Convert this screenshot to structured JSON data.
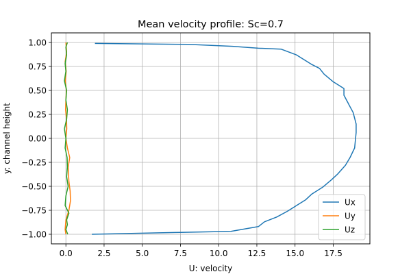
{
  "chart_data": {
    "type": "line",
    "title": "Mean velocity profile: Sc=0.7",
    "xlabel": "U: velocity",
    "ylabel": "y: channel height",
    "xlim": [
      -0.95,
      19.9
    ],
    "ylim": [
      -1.1,
      1.1
    ],
    "x_ticks": [
      "0.0",
      "2.5",
      "5.0",
      "7.5",
      "10.0",
      "12.5",
      "15.0",
      "17.5"
    ],
    "y_ticks": [
      "1.00",
      "0.75",
      "0.50",
      "0.25",
      "0.00",
      "−0.25",
      "−0.50",
      "−0.75",
      "−1.00"
    ],
    "grid": true,
    "legend_position": "lower-right",
    "series": [
      {
        "name": "Ux",
        "color": "#1f77b4",
        "x": [
          1.9,
          8.0,
          10.9,
          12.6,
          14.1,
          15.1,
          15.6,
          16.1,
          16.6,
          16.9,
          17.5,
          18.2,
          18.2,
          18.6,
          18.8,
          18.9,
          19.0,
          19.0,
          18.95,
          18.9,
          18.6,
          18.3,
          17.8,
          17.4,
          16.8,
          16.1,
          15.7,
          15.1,
          14.5,
          13.8,
          13.0,
          12.6,
          10.8,
          7.5,
          1.7
        ],
        "y": [
          0.99,
          0.98,
          0.96,
          0.94,
          0.93,
          0.87,
          0.82,
          0.77,
          0.73,
          0.67,
          0.59,
          0.52,
          0.45,
          0.33,
          0.27,
          0.21,
          0.15,
          0.06,
          -0.02,
          -0.1,
          -0.2,
          -0.28,
          -0.37,
          -0.43,
          -0.51,
          -0.58,
          -0.64,
          -0.7,
          -0.76,
          -0.82,
          -0.87,
          -0.92,
          -0.97,
          -0.98,
          -1.0
        ]
      },
      {
        "name": "Uy",
        "color": "#ff7f0e",
        "x": [
          0.0,
          0.05,
          -0.05,
          0.02,
          -0.04,
          0.03,
          0.0,
          -0.02,
          0.04,
          0.06,
          0.0,
          0.1,
          0.25,
          0.15,
          0.2,
          0.28,
          0.3,
          0.2,
          0.0,
          -0.05,
          0.0
        ],
        "y": [
          1.0,
          0.9,
          0.8,
          0.7,
          0.6,
          0.5,
          0.4,
          0.3,
          0.2,
          0.1,
          0.0,
          -0.1,
          -0.2,
          -0.3,
          -0.45,
          -0.55,
          -0.65,
          -0.75,
          -0.85,
          -0.95,
          -1.0
        ]
      },
      {
        "name": "Uz",
        "color": "#2ca02c",
        "x": [
          0.1,
          0.0,
          0.05,
          -0.05,
          0.0,
          -0.1,
          0.05,
          0.0,
          0.1,
          0.05,
          -0.1,
          0.0,
          -0.05,
          0.08,
          0.1,
          0.05,
          0.15,
          0.0,
          -0.05,
          0.2,
          0.05,
          0.1,
          0.0,
          0.12
        ],
        "y": [
          1.0,
          0.95,
          0.87,
          0.78,
          0.7,
          0.6,
          0.5,
          0.4,
          0.3,
          0.2,
          0.1,
          0.0,
          -0.1,
          -0.2,
          -0.3,
          -0.4,
          -0.5,
          -0.6,
          -0.7,
          -0.78,
          -0.85,
          -0.9,
          -0.95,
          -1.0
        ]
      }
    ]
  }
}
